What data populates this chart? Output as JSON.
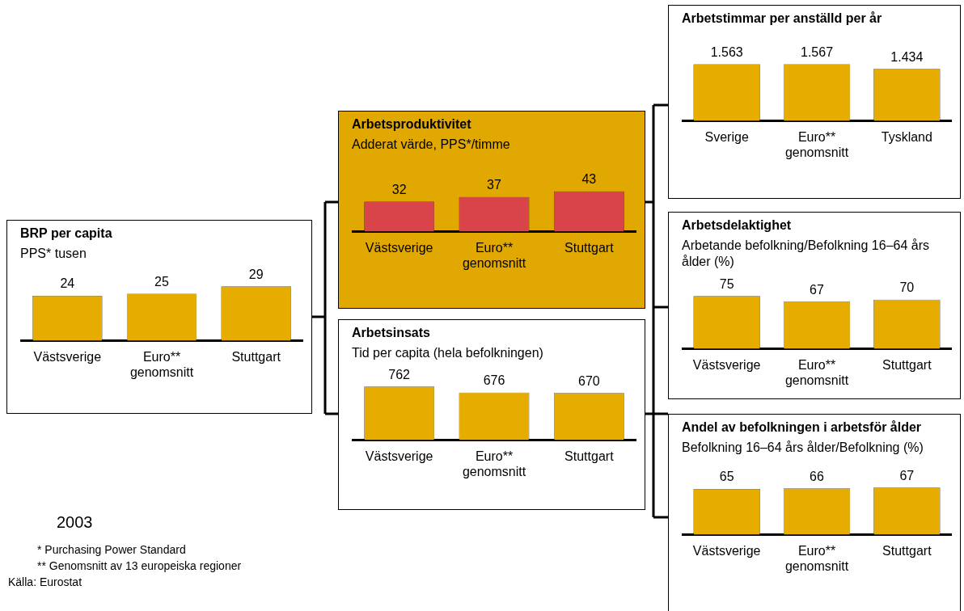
{
  "chart_data": [
    {
      "type": "bar",
      "title": "BRP per capita",
      "subtitle": "PPS* tusen",
      "categories": [
        "Västsverige",
        "Euro**\ngenomsnitt",
        "Stuttgart"
      ],
      "values": [
        24,
        25,
        29
      ],
      "color": "#e6ac00",
      "data_labels": true,
      "annotations": [
        "2003",
        "* Purchasing Power Standard",
        "** Genomsnitt av 13 europeiska regioner",
        "Källa: Eurostat"
      ]
    },
    {
      "type": "bar",
      "title": "Arbetsproduktivitet",
      "subtitle": "Adderat värde, PPS*/timme",
      "categories": [
        "Västsverige",
        "Euro**\ngenomsnitt",
        "Stuttgart"
      ],
      "values": [
        32,
        37,
        43
      ],
      "color": "#d9434a",
      "data_labels": true
    },
    {
      "type": "bar",
      "title": "Arbetsinsats",
      "subtitle": "Tid per capita (hela befolkningen)",
      "categories": [
        "Västsverige",
        "Euro**\ngenomsnitt",
        "Stuttgart"
      ],
      "values": [
        762,
        676,
        670
      ],
      "color": "#e6ac00",
      "data_labels": true
    },
    {
      "type": "bar",
      "title": "Arbetstimmar per anställd per år",
      "categories": [
        "Sverige",
        "Euro**\ngenomsnitt",
        "Tyskland"
      ],
      "values": [
        1563,
        1567,
        1434
      ],
      "value_labels": [
        "1.563",
        "1.567",
        "1.434"
      ],
      "color": "#e6ac00"
    },
    {
      "type": "bar",
      "title": "Arbetsdelaktighet",
      "subtitle": "Arbetande befolkning/Befolkning 16–64 års ålder (%)",
      "categories": [
        "Västsverige",
        "Euro**\ngenomsnitt",
        "Stuttgart"
      ],
      "values": [
        75,
        67,
        70
      ],
      "color": "#e6ac00",
      "data_labels": true
    },
    {
      "type": "bar",
      "title": "Andel av befolkningen i arbetsför ålder",
      "subtitle": "Befolkning 16–64 års ålder/Befolkning (%)",
      "categories": [
        "Västsverige",
        "Euro**\ngenomsnitt",
        "Stuttgart"
      ],
      "values": [
        65,
        66,
        67
      ],
      "color": "#e6ac00",
      "data_labels": true
    }
  ]
}
